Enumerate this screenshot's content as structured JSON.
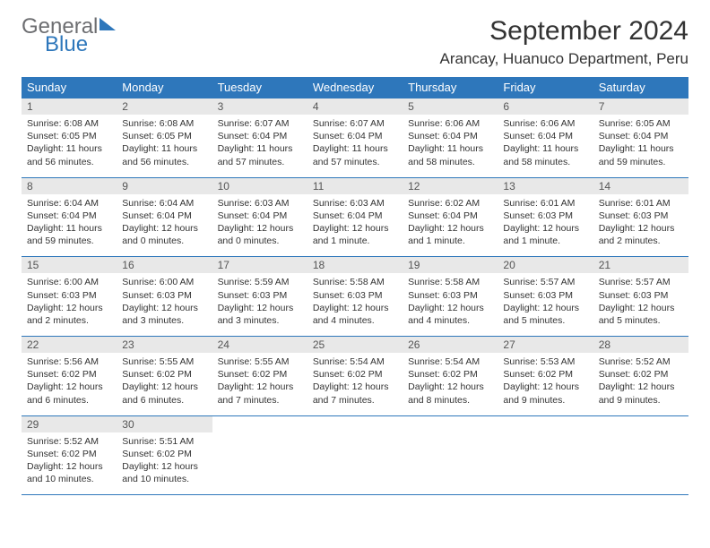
{
  "logo": {
    "general": "General",
    "blue": "Blue"
  },
  "title": "September 2024",
  "location": "Arancay, Huanuco Department, Peru",
  "weekdays": [
    "Sunday",
    "Monday",
    "Tuesday",
    "Wednesday",
    "Thursday",
    "Friday",
    "Saturday"
  ],
  "colors": {
    "header_bg": "#2e77bb",
    "header_fg": "#ffffff",
    "daynum_bg": "#e8e8e8",
    "border": "#2e77bb",
    "text": "#333333",
    "logo_gray": "#6d6e71",
    "logo_blue": "#2e77bb"
  },
  "weeks": [
    [
      {
        "n": "1",
        "sr": "Sunrise: 6:08 AM",
        "ss": "Sunset: 6:05 PM",
        "d1": "Daylight: 11 hours",
        "d2": "and 56 minutes."
      },
      {
        "n": "2",
        "sr": "Sunrise: 6:08 AM",
        "ss": "Sunset: 6:05 PM",
        "d1": "Daylight: 11 hours",
        "d2": "and 56 minutes."
      },
      {
        "n": "3",
        "sr": "Sunrise: 6:07 AM",
        "ss": "Sunset: 6:04 PM",
        "d1": "Daylight: 11 hours",
        "d2": "and 57 minutes."
      },
      {
        "n": "4",
        "sr": "Sunrise: 6:07 AM",
        "ss": "Sunset: 6:04 PM",
        "d1": "Daylight: 11 hours",
        "d2": "and 57 minutes."
      },
      {
        "n": "5",
        "sr": "Sunrise: 6:06 AM",
        "ss": "Sunset: 6:04 PM",
        "d1": "Daylight: 11 hours",
        "d2": "and 58 minutes."
      },
      {
        "n": "6",
        "sr": "Sunrise: 6:06 AM",
        "ss": "Sunset: 6:04 PM",
        "d1": "Daylight: 11 hours",
        "d2": "and 58 minutes."
      },
      {
        "n": "7",
        "sr": "Sunrise: 6:05 AM",
        "ss": "Sunset: 6:04 PM",
        "d1": "Daylight: 11 hours",
        "d2": "and 59 minutes."
      }
    ],
    [
      {
        "n": "8",
        "sr": "Sunrise: 6:04 AM",
        "ss": "Sunset: 6:04 PM",
        "d1": "Daylight: 11 hours",
        "d2": "and 59 minutes."
      },
      {
        "n": "9",
        "sr": "Sunrise: 6:04 AM",
        "ss": "Sunset: 6:04 PM",
        "d1": "Daylight: 12 hours",
        "d2": "and 0 minutes."
      },
      {
        "n": "10",
        "sr": "Sunrise: 6:03 AM",
        "ss": "Sunset: 6:04 PM",
        "d1": "Daylight: 12 hours",
        "d2": "and 0 minutes."
      },
      {
        "n": "11",
        "sr": "Sunrise: 6:03 AM",
        "ss": "Sunset: 6:04 PM",
        "d1": "Daylight: 12 hours",
        "d2": "and 1 minute."
      },
      {
        "n": "12",
        "sr": "Sunrise: 6:02 AM",
        "ss": "Sunset: 6:04 PM",
        "d1": "Daylight: 12 hours",
        "d2": "and 1 minute."
      },
      {
        "n": "13",
        "sr": "Sunrise: 6:01 AM",
        "ss": "Sunset: 6:03 PM",
        "d1": "Daylight: 12 hours",
        "d2": "and 1 minute."
      },
      {
        "n": "14",
        "sr": "Sunrise: 6:01 AM",
        "ss": "Sunset: 6:03 PM",
        "d1": "Daylight: 12 hours",
        "d2": "and 2 minutes."
      }
    ],
    [
      {
        "n": "15",
        "sr": "Sunrise: 6:00 AM",
        "ss": "Sunset: 6:03 PM",
        "d1": "Daylight: 12 hours",
        "d2": "and 2 minutes."
      },
      {
        "n": "16",
        "sr": "Sunrise: 6:00 AM",
        "ss": "Sunset: 6:03 PM",
        "d1": "Daylight: 12 hours",
        "d2": "and 3 minutes."
      },
      {
        "n": "17",
        "sr": "Sunrise: 5:59 AM",
        "ss": "Sunset: 6:03 PM",
        "d1": "Daylight: 12 hours",
        "d2": "and 3 minutes."
      },
      {
        "n": "18",
        "sr": "Sunrise: 5:58 AM",
        "ss": "Sunset: 6:03 PM",
        "d1": "Daylight: 12 hours",
        "d2": "and 4 minutes."
      },
      {
        "n": "19",
        "sr": "Sunrise: 5:58 AM",
        "ss": "Sunset: 6:03 PM",
        "d1": "Daylight: 12 hours",
        "d2": "and 4 minutes."
      },
      {
        "n": "20",
        "sr": "Sunrise: 5:57 AM",
        "ss": "Sunset: 6:03 PM",
        "d1": "Daylight: 12 hours",
        "d2": "and 5 minutes."
      },
      {
        "n": "21",
        "sr": "Sunrise: 5:57 AM",
        "ss": "Sunset: 6:03 PM",
        "d1": "Daylight: 12 hours",
        "d2": "and 5 minutes."
      }
    ],
    [
      {
        "n": "22",
        "sr": "Sunrise: 5:56 AM",
        "ss": "Sunset: 6:02 PM",
        "d1": "Daylight: 12 hours",
        "d2": "and 6 minutes."
      },
      {
        "n": "23",
        "sr": "Sunrise: 5:55 AM",
        "ss": "Sunset: 6:02 PM",
        "d1": "Daylight: 12 hours",
        "d2": "and 6 minutes."
      },
      {
        "n": "24",
        "sr": "Sunrise: 5:55 AM",
        "ss": "Sunset: 6:02 PM",
        "d1": "Daylight: 12 hours",
        "d2": "and 7 minutes."
      },
      {
        "n": "25",
        "sr": "Sunrise: 5:54 AM",
        "ss": "Sunset: 6:02 PM",
        "d1": "Daylight: 12 hours",
        "d2": "and 7 minutes."
      },
      {
        "n": "26",
        "sr": "Sunrise: 5:54 AM",
        "ss": "Sunset: 6:02 PM",
        "d1": "Daylight: 12 hours",
        "d2": "and 8 minutes."
      },
      {
        "n": "27",
        "sr": "Sunrise: 5:53 AM",
        "ss": "Sunset: 6:02 PM",
        "d1": "Daylight: 12 hours",
        "d2": "and 9 minutes."
      },
      {
        "n": "28",
        "sr": "Sunrise: 5:52 AM",
        "ss": "Sunset: 6:02 PM",
        "d1": "Daylight: 12 hours",
        "d2": "and 9 minutes."
      }
    ],
    [
      {
        "n": "29",
        "sr": "Sunrise: 5:52 AM",
        "ss": "Sunset: 6:02 PM",
        "d1": "Daylight: 12 hours",
        "d2": "and 10 minutes."
      },
      {
        "n": "30",
        "sr": "Sunrise: 5:51 AM",
        "ss": "Sunset: 6:02 PM",
        "d1": "Daylight: 12 hours",
        "d2": "and 10 minutes."
      },
      {
        "empty": true,
        "n": "",
        "sr": "",
        "ss": "",
        "d1": "",
        "d2": ""
      },
      {
        "empty": true,
        "n": "",
        "sr": "",
        "ss": "",
        "d1": "",
        "d2": ""
      },
      {
        "empty": true,
        "n": "",
        "sr": "",
        "ss": "",
        "d1": "",
        "d2": ""
      },
      {
        "empty": true,
        "n": "",
        "sr": "",
        "ss": "",
        "d1": "",
        "d2": ""
      },
      {
        "empty": true,
        "n": "",
        "sr": "",
        "ss": "",
        "d1": "",
        "d2": ""
      }
    ]
  ]
}
